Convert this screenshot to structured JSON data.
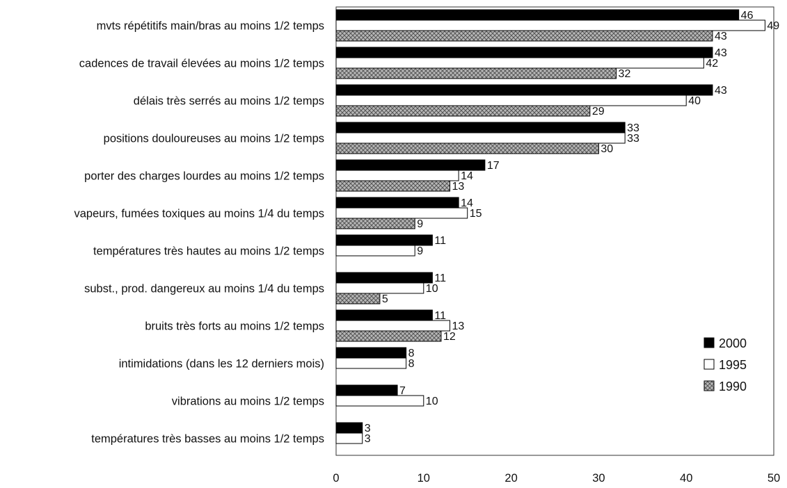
{
  "chart_data": {
    "type": "bar",
    "orientation": "horizontal",
    "title": "",
    "xlabel": "",
    "ylabel": "",
    "xlim": [
      0,
      50
    ],
    "x_ticks": [
      "0",
      "10",
      "20",
      "30",
      "40",
      "50"
    ],
    "grid": false,
    "legend_position": "bottom-right",
    "categories": [
      "mvts répétitifs main/bras au moins 1/2 temps",
      "cadences de travail élevées au moins 1/2 temps",
      "délais très serrés au moins 1/2 temps",
      "positions douloureuses au moins 1/2 temps",
      "porter des charges lourdes au moins 1/2 temps",
      "vapeurs, fumées toxiques au moins 1/4 du temps",
      "températures très hautes au moins 1/2 temps",
      "subst., prod. dangereux au moins 1/4 du temps",
      "bruits très forts au moins 1/2 temps",
      "intimidations (dans les 12 derniers mois)",
      "vibrations au moins 1/2 temps",
      "températures très basses au moins 1/2 temps"
    ],
    "series": [
      {
        "name": "2000",
        "color": "#000000",
        "pattern": "solid",
        "values": [
          46,
          43,
          43,
          33,
          17,
          14,
          11,
          11,
          11,
          8,
          7,
          3
        ],
        "labels": [
          "46",
          "43",
          "43",
          "33",
          "17",
          "14",
          "11",
          "11",
          "11",
          "8",
          "7",
          "3"
        ]
      },
      {
        "name": "1995",
        "color": "#ffffff",
        "pattern": "empty",
        "values": [
          49,
          42,
          40,
          33,
          14,
          15,
          9,
          10,
          13,
          8,
          10,
          3
        ],
        "labels": [
          "49",
          "42",
          "40",
          "33",
          "14",
          "15",
          "9",
          "10",
          "13",
          "8",
          "10",
          "3"
        ]
      },
      {
        "name": "1990",
        "color": "#9a9a9a",
        "pattern": "crosshatch",
        "values": [
          43,
          32,
          29,
          30,
          13,
          9,
          null,
          5,
          12,
          null,
          null,
          null
        ],
        "labels": [
          "43",
          "32",
          "29",
          "30",
          "13",
          "9",
          "",
          "5",
          "12",
          "",
          "",
          ""
        ]
      }
    ]
  }
}
